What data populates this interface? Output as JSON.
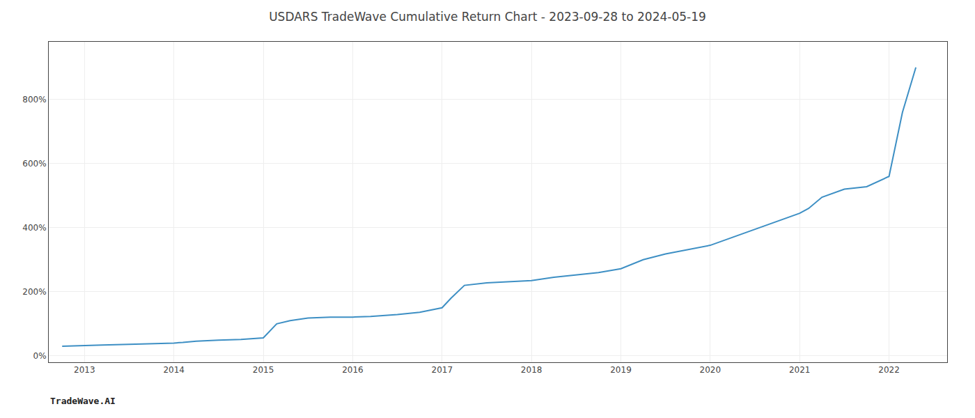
{
  "chart_data": {
    "type": "line",
    "title": "USDARS TradeWave Cumulative Return Chart - 2023-09-28 to 2024-05-19",
    "annotations": [
      "TradeWave.AI"
    ],
    "x": [
      2012.75,
      2012.85,
      2013.0,
      2013.2,
      2013.5,
      2013.8,
      2014.0,
      2014.1,
      2014.25,
      2014.5,
      2014.75,
      2015.0,
      2015.15,
      2015.3,
      2015.5,
      2015.75,
      2016.0,
      2016.2,
      2016.5,
      2016.75,
      2017.0,
      2017.1,
      2017.25,
      2017.5,
      2017.75,
      2018.0,
      2018.25,
      2018.5,
      2018.75,
      2019.0,
      2019.25,
      2019.5,
      2019.75,
      2020.0,
      2020.25,
      2020.5,
      2020.75,
      2021.0,
      2021.1,
      2021.25,
      2021.5,
      2021.75,
      2022.0,
      2022.15,
      2022.3
    ],
    "values": [
      30,
      31,
      33,
      34,
      36,
      38,
      40,
      42,
      46,
      49,
      51,
      56,
      100,
      110,
      118,
      121,
      121,
      123,
      129,
      136,
      150,
      180,
      220,
      228,
      232,
      235,
      245,
      252,
      260,
      272,
      300,
      318,
      332,
      345,
      370,
      395,
      420,
      445,
      460,
      495,
      520,
      528,
      560,
      760,
      900
    ],
    "color": "#3d8fc4",
    "xlim": [
      2012.6,
      2022.65
    ],
    "xticks": [
      2013,
      2014,
      2015,
      2016,
      2017,
      2018,
      2019,
      2020,
      2021,
      2022
    ],
    "ylim": [
      -20,
      980
    ],
    "yticks": [
      {
        "value": 0,
        "label": "0%"
      },
      {
        "value": 200,
        "label": "200%"
      },
      {
        "value": 400,
        "label": "400%"
      },
      {
        "value": 600,
        "label": "600%"
      },
      {
        "value": 800,
        "label": "800%"
      }
    ],
    "grid": true
  }
}
